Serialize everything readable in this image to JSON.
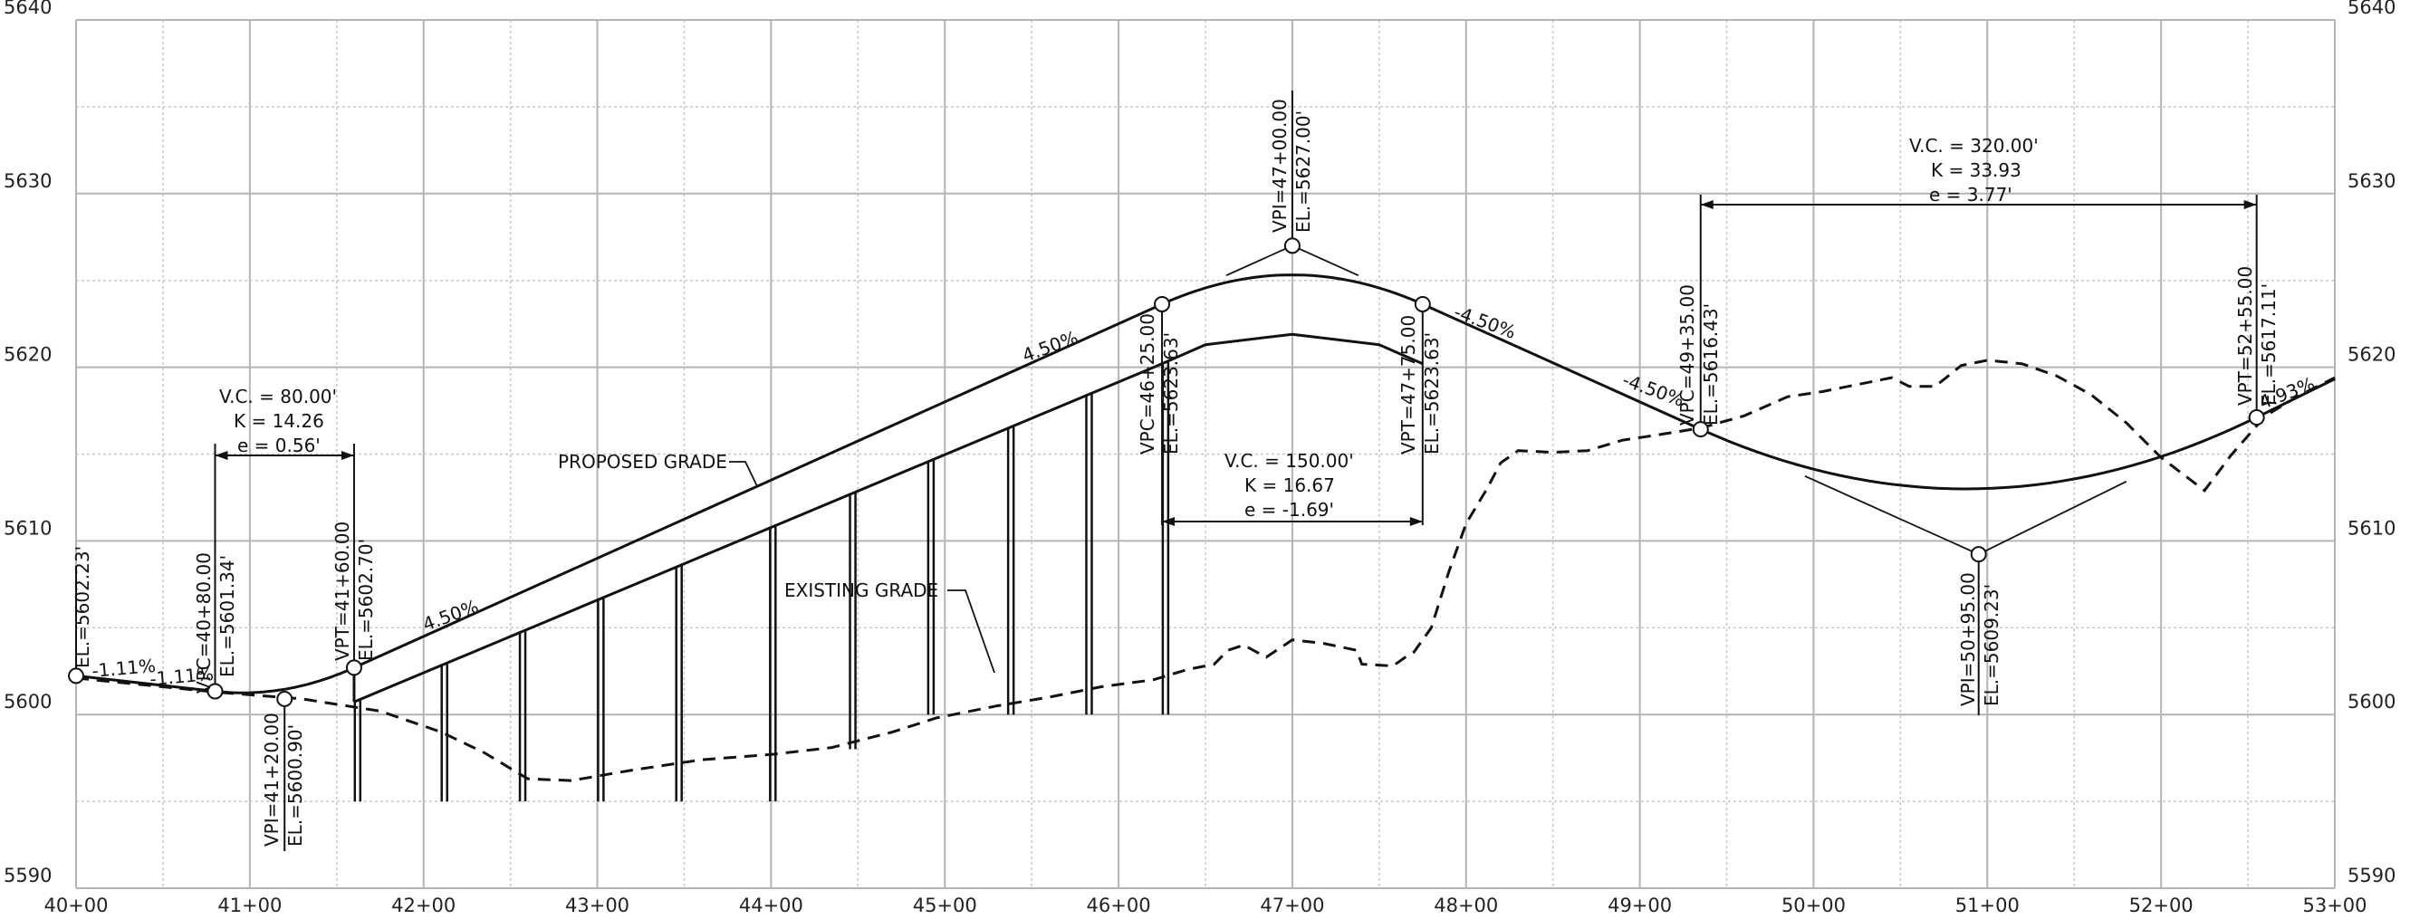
{
  "chart_data": {
    "type": "line",
    "x_axis": {
      "min_station_ft": 4000,
      "max_station_ft": 5300,
      "tick_step_ft": 100,
      "tick_labels": [
        "40+00",
        "41+00",
        "42+00",
        "43+00",
        "44+00",
        "45+00",
        "46+00",
        "47+00",
        "48+00",
        "49+00",
        "50+00",
        "51+00",
        "52+00",
        "53+00"
      ]
    },
    "y_axis": {
      "min": 5590,
      "max": 5640,
      "labeled_step": 10,
      "grid_step": 5,
      "tick_labels": [
        "5590",
        "5600",
        "5610",
        "5620",
        "5630",
        "5640"
      ]
    },
    "grid": true,
    "series": [
      {
        "key": "proposed",
        "name": "PROPOSED GRADE",
        "style": "solid",
        "elements": [
          {
            "kind": "tangent",
            "from": [
              4000,
              5602.23
            ],
            "to": [
              4080,
              5601.34
            ],
            "grade_pct": -1.11
          },
          {
            "kind": "vertical_curve",
            "vpc": [
              4080,
              5601.34
            ],
            "vpi": [
              4120,
              5600.9
            ],
            "vpt": [
              4160,
              5602.7
            ],
            "g1": -1.11,
            "g2": 4.5,
            "length_ft": 80
          },
          {
            "kind": "tangent",
            "from": [
              4160,
              5602.7
            ],
            "to": [
              4625,
              5623.63
            ],
            "grade_pct": 4.5
          },
          {
            "kind": "vertical_curve",
            "vpc": [
              4625,
              5623.63
            ],
            "vpi": [
              4700,
              5627.0
            ],
            "vpt": [
              4775,
              5623.63
            ],
            "g1": 4.5,
            "g2": -4.5,
            "length_ft": 150
          },
          {
            "kind": "tangent",
            "from": [
              4775,
              5623.63
            ],
            "to": [
              4935,
              5616.43
            ],
            "grade_pct": -4.5
          },
          {
            "kind": "vertical_curve",
            "vpc": [
              4935,
              5616.43
            ],
            "vpi": [
              5095,
              5609.23
            ],
            "vpt": [
              5255,
              5617.11
            ],
            "g1": -4.5,
            "g2": 4.93,
            "length_ft": 320
          },
          {
            "kind": "tangent",
            "from": [
              5255,
              5617.11
            ],
            "to": [
              5300,
              5619.33
            ],
            "grade_pct": 4.93
          }
        ]
      },
      {
        "key": "wall_top",
        "name": "",
        "style": "solid",
        "points": [
          [
            4160,
            5600.73
          ],
          [
            4625,
            5620.2
          ],
          [
            4650,
            5621.3
          ],
          [
            4700,
            5621.9
          ],
          [
            4750,
            5621.3
          ],
          [
            4775,
            5620.2
          ]
        ]
      },
      {
        "key": "existing",
        "name": "EXISTING GRADE",
        "style": "dashed",
        "points": [
          [
            4000,
            5602.1
          ],
          [
            4080,
            5601.3
          ],
          [
            4130,
            5600.9
          ],
          [
            4175,
            5600.2
          ],
          [
            4210,
            5599.0
          ],
          [
            4235,
            5597.8
          ],
          [
            4260,
            5596.3
          ],
          [
            4285,
            5596.2
          ],
          [
            4320,
            5596.8
          ],
          [
            4360,
            5597.4
          ],
          [
            4400,
            5597.7
          ],
          [
            4435,
            5598.1
          ],
          [
            4470,
            5599.0
          ],
          [
            4495,
            5599.8
          ],
          [
            4530,
            5600.5
          ],
          [
            4560,
            5601.0
          ],
          [
            4590,
            5601.6
          ],
          [
            4620,
            5602.0
          ],
          [
            4640,
            5602.6
          ],
          [
            4655,
            5602.9
          ],
          [
            4663,
            5603.7
          ],
          [
            4672,
            5604.0
          ],
          [
            4685,
            5603.3
          ],
          [
            4700,
            5604.3
          ],
          [
            4718,
            5604.1
          ],
          [
            4737,
            5603.7
          ],
          [
            4740,
            5602.9
          ],
          [
            4758,
            5602.8
          ],
          [
            4765,
            5603.3
          ],
          [
            4770,
            5603.6
          ],
          [
            4780,
            5605.0
          ],
          [
            4790,
            5608.2
          ],
          [
            4800,
            5611.0
          ],
          [
            4812,
            5613.0
          ],
          [
            4820,
            5614.5
          ],
          [
            4830,
            5615.2
          ],
          [
            4850,
            5615.1
          ],
          [
            4870,
            5615.2
          ],
          [
            4890,
            5615.8
          ],
          [
            4910,
            5616.1
          ],
          [
            4935,
            5616.5
          ],
          [
            4960,
            5617.2
          ],
          [
            4985,
            5618.3
          ],
          [
            5005,
            5618.6
          ],
          [
            5025,
            5619.0
          ],
          [
            5045,
            5619.4
          ],
          [
            5055,
            5618.9
          ],
          [
            5070,
            5618.9
          ],
          [
            5085,
            5620.1
          ],
          [
            5100,
            5620.4
          ],
          [
            5120,
            5620.2
          ],
          [
            5140,
            5619.5
          ],
          [
            5160,
            5618.4
          ],
          [
            5180,
            5616.8
          ],
          [
            5200,
            5614.8
          ],
          [
            5225,
            5612.9
          ],
          [
            5240,
            5614.9
          ],
          [
            5260,
            5617.2
          ],
          [
            5280,
            5618.4
          ],
          [
            5300,
            5619.4
          ]
        ]
      }
    ],
    "wall_posts": [
      {
        "station": 4162,
        "bottom": 5595.0
      },
      {
        "station": 4212,
        "bottom": 5595.0
      },
      {
        "station": 4257,
        "bottom": 5595.0
      },
      {
        "station": 4302,
        "bottom": 5595.0
      },
      {
        "station": 4347,
        "bottom": 5595.0
      },
      {
        "station": 4401,
        "bottom": 5595.0
      },
      {
        "station": 4447,
        "bottom": 5598.0
      },
      {
        "station": 4492,
        "bottom": 5600.0
      },
      {
        "station": 4538,
        "bottom": 5600.0
      },
      {
        "station": 4583,
        "bottom": 5600.0
      },
      {
        "station": 4627,
        "bottom": 5600.0
      }
    ],
    "vertical_curves": [
      {
        "vc": "V.C. = 80.00'",
        "k": "K = 14.26",
        "e": "e = 0.56'"
      },
      {
        "vc": "V.C. = 150.00'",
        "k": "K = 16.67",
        "e": "e = -1.69'"
      },
      {
        "vc": "V.C. = 320.00'",
        "k": "K = 33.93",
        "e": "e = 3.77'"
      }
    ],
    "callouts": {
      "start_el": "EL.=5602.23'",
      "vpc1_sta": "VPC=40+80.00",
      "vpc1_el": "EL.=5601.34'",
      "vpi1_sta": "VPI=41+20.00",
      "vpi1_el": "EL.=5600.90'",
      "vpt1_sta": "VPT=41+60.00",
      "vpt1_el": "EL.=5602.70'",
      "vpc2_sta": "VPC=46+25.00",
      "vpc2_el": "EL.=5623.63'",
      "vpi2_sta": "VPI=47+00.00",
      "vpi2_el": "EL.=5627.00'",
      "vpt2_sta": "VPT=47+75.00",
      "vpt2_el": "EL.=5623.63'",
      "vpc3_sta": "VPC=49+35.00",
      "vpc3_el": "EL.=5616.43'",
      "vpi3_sta": "VPI=50+95.00",
      "vpi3_el": "EL.=5609.23'",
      "vpt3_sta": "VPT=52+55.00",
      "vpt3_el": "EL.=5617.11'"
    },
    "grade_labels": {
      "g_neg111_a": "-1.11%",
      "g_neg111_b": "-1.11%",
      "g_450_lower": "4.50%",
      "g_450_upper": "4.50%",
      "g_neg450_a": "-4.50%",
      "g_neg450_b": "-4.50%",
      "g_493": "4.93%"
    },
    "labels": {
      "proposed": "PROPOSED GRADE",
      "existing": "EXISTING GRADE"
    }
  }
}
